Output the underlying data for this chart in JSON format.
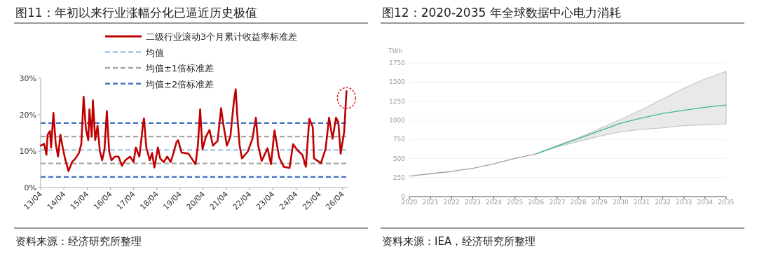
{
  "chart_data": [
    {
      "type": "line",
      "title": "图11：年初以来行业涨幅分化已逼近历史极值",
      "x": [
        "2013-04-01",
        "2013-05-25",
        "2013-07-01",
        "2013-07-19",
        "2013-08-25",
        "2013-09-13",
        "2013-10-19",
        "2013-11-25",
        "2014-01-01",
        "2014-02-07",
        "2014-03-13",
        "2014-04-19",
        "2014-06-13",
        "2014-08-07",
        "2014-10-01",
        "2014-11-25",
        "2015-01-01",
        "2015-02-07",
        "2015-03-13",
        "2015-04-19",
        "2015-05-07",
        "2015-06-13",
        "2015-07-01",
        "2015-08-07",
        "2015-09-13",
        "2015-10-19",
        "2015-11-25",
        "2016-01-01",
        "2016-02-07",
        "2016-03-13",
        "2016-04-19",
        "2016-06-13",
        "2016-08-07",
        "2016-10-01",
        "2016-11-25",
        "2017-02-07",
        "2017-04-01",
        "2017-05-07",
        "2017-07-01",
        "2017-08-07",
        "2017-08-25",
        "2017-09-13",
        "2017-10-19",
        "2017-12-13",
        "2018-01-19",
        "2018-02-25",
        "2018-04-19",
        "2018-05-25",
        "2018-07-19",
        "2018-09-13",
        "2018-11-07",
        "2018-12-13",
        "2019-02-07",
        "2019-03-02",
        "2019-04-26",
        "2019-08-14",
        "2019-12-02",
        "2020-01-08",
        "2020-02-14",
        "2020-03-20",
        "2020-05-14",
        "2020-07-08",
        "2020-09-02",
        "2020-11-14",
        "2021-01-08",
        "2021-02-14",
        "2021-04-08",
        "2021-06-02",
        "2021-07-26",
        "2021-08-25",
        "2021-09-20",
        "2021-10-26",
        "2021-12-02",
        "2022-03-02",
        "2022-05-14",
        "2022-07-08",
        "2022-08-14",
        "2022-10-08",
        "2023-01-08",
        "2023-03-02",
        "2023-04-26",
        "2023-07-08",
        "2023-09-20",
        "2023-12-20",
        "2024-02-14",
        "2024-04-26",
        "2024-07-08",
        "2024-09-02",
        "2024-10-26",
        "2024-12-20",
        "2025-01-08",
        "2025-04-26",
        "2025-07-08",
        "2025-09-02",
        "2025-10-26",
        "2025-12-20",
        "2026-01-26",
        "2026-03-02",
        "2026-04-26",
        "2026-06-02"
      ],
      "series": [
        {
          "name": "二级行业滚动3个月累计收益率标准差",
          "color": "#c00000",
          "values": [
            11.5,
            12,
            9,
            14.5,
            15.5,
            11,
            20.5,
            12,
            8.5,
            14.5,
            11,
            8,
            4.5,
            7,
            8,
            9.5,
            12,
            25,
            16,
            13,
            21.5,
            14,
            24,
            13,
            17,
            10,
            7.5,
            10.5,
            21,
            10,
            7.5,
            8.5,
            8.5,
            6,
            7.5,
            8.5,
            7,
            11,
            8.5,
            14,
            17,
            19,
            11,
            7.5,
            9.5,
            5.5,
            11,
            8,
            7,
            8.5,
            7,
            9,
            12.5,
            13,
            9.6,
            9.3,
            6.4,
            11.5,
            21.5,
            10.5,
            14,
            15.8,
            11.5,
            12.8,
            21.8,
            17.3,
            11.5,
            14,
            23.6,
            27,
            19.7,
            11.5,
            8,
            9.9,
            13.4,
            19.2,
            11.5,
            7.3,
            10.8,
            6.4,
            15.7,
            8.3,
            5.7,
            5.4,
            11.9,
            10.2,
            9,
            5.7,
            18.9,
            16.6,
            8,
            6.7,
            10.6,
            19.2,
            13.4,
            19.2,
            17.9,
            9.3,
            15.3,
            26.5
          ]
        }
      ],
      "xlim": [
        "2013-04-01",
        "2026-07-01"
      ],
      "xticks": [
        {
          "value": "2013-04",
          "label": "13/04"
        },
        {
          "value": "2014-04",
          "label": "14/04"
        },
        {
          "value": "2015-04",
          "label": "15/04"
        },
        {
          "value": "2016-04",
          "label": "16/04"
        },
        {
          "value": "2017-04",
          "label": "17/04"
        },
        {
          "value": "2018-04",
          "label": "18/04"
        },
        {
          "value": "2019-04",
          "label": "19/04"
        },
        {
          "value": "2020-04",
          "label": "20/04"
        },
        {
          "value": "2021-04",
          "label": "21/04"
        },
        {
          "value": "2022-04",
          "label": "22/04"
        },
        {
          "value": "2023-04",
          "label": "23/04"
        },
        {
          "value": "2024-04",
          "label": "24/04"
        },
        {
          "value": "2025-04",
          "label": "25/04"
        },
        {
          "value": "2026-04",
          "label": "26/04"
        }
      ],
      "ylim": [
        0,
        30
      ],
      "yticks": [
        {
          "value": 0,
          "label": "0%"
        },
        {
          "value": 10,
          "label": "10%"
        },
        {
          "value": 20,
          "label": "20%"
        },
        {
          "value": 30,
          "label": "30%"
        }
      ],
      "ref_lines": [
        {
          "axis": "y",
          "value": 10.3,
          "label": "均值",
          "color": "#9dc3e6",
          "line_style": "dashed"
        },
        {
          "axis": "y",
          "value": 14.0,
          "label": "均值±1倍标准差",
          "color": "#a6a6a6",
          "line_style": "dashed"
        },
        {
          "axis": "y",
          "value": 6.6,
          "color": "#a6a6a6",
          "line_style": "dashed"
        },
        {
          "axis": "y",
          "value": 17.7,
          "label": "均值±2倍标准差",
          "color": "#4472c4",
          "line_style": "dashed"
        },
        {
          "axis": "y",
          "value": 2.9,
          "color": "#4472c4",
          "line_style": "dashed"
        }
      ],
      "legend": "top",
      "line_style": "solid",
      "annotations": [
        "资料来源：经济研究所整理"
      ]
    },
    {
      "type": "line",
      "title": "图12：2020-2035 年全球数据中心电力消耗",
      "ylabel": "TWh",
      "x": [
        2020,
        2021,
        2022,
        2023,
        2024,
        2025,
        2026,
        2027,
        2028,
        2029,
        2030,
        2031,
        2032,
        2033,
        2034,
        2035
      ],
      "series": [
        {
          "color": "#a0a0a0",
          "values": [
            270,
            300,
            330,
            370,
            430,
            500,
            560,
            null,
            null,
            null,
            null,
            null,
            null,
            null,
            null,
            null
          ]
        },
        {
          "color": "#3bb39b",
          "values": [
            null,
            null,
            null,
            null,
            null,
            null,
            560,
            660,
            760,
            860,
            960,
            1030,
            1090,
            1130,
            1170,
            1200
          ],
          "lower": [
            null,
            null,
            null,
            null,
            null,
            null,
            560,
            650,
            720,
            790,
            850,
            880,
            900,
            930,
            940,
            950
          ],
          "upper": [
            null,
            null,
            null,
            null,
            null,
            null,
            560,
            670,
            770,
            890,
            1010,
            1140,
            1280,
            1420,
            1540,
            1640
          ]
        }
      ],
      "xlim": [
        2020,
        2035
      ],
      "xticks": [
        2020,
        2021,
        2022,
        2023,
        2024,
        2025,
        2026,
        2027,
        2028,
        2029,
        2030,
        2031,
        2032,
        2033,
        2034,
        2035
      ],
      "ylim": [
        0,
        1750
      ],
      "yticks": [
        0,
        250,
        500,
        750,
        1000,
        1250,
        1500,
        1750
      ],
      "grid": "y",
      "annotations": [
        "资料来源：IEA，经济研究所整理"
      ]
    }
  ]
}
